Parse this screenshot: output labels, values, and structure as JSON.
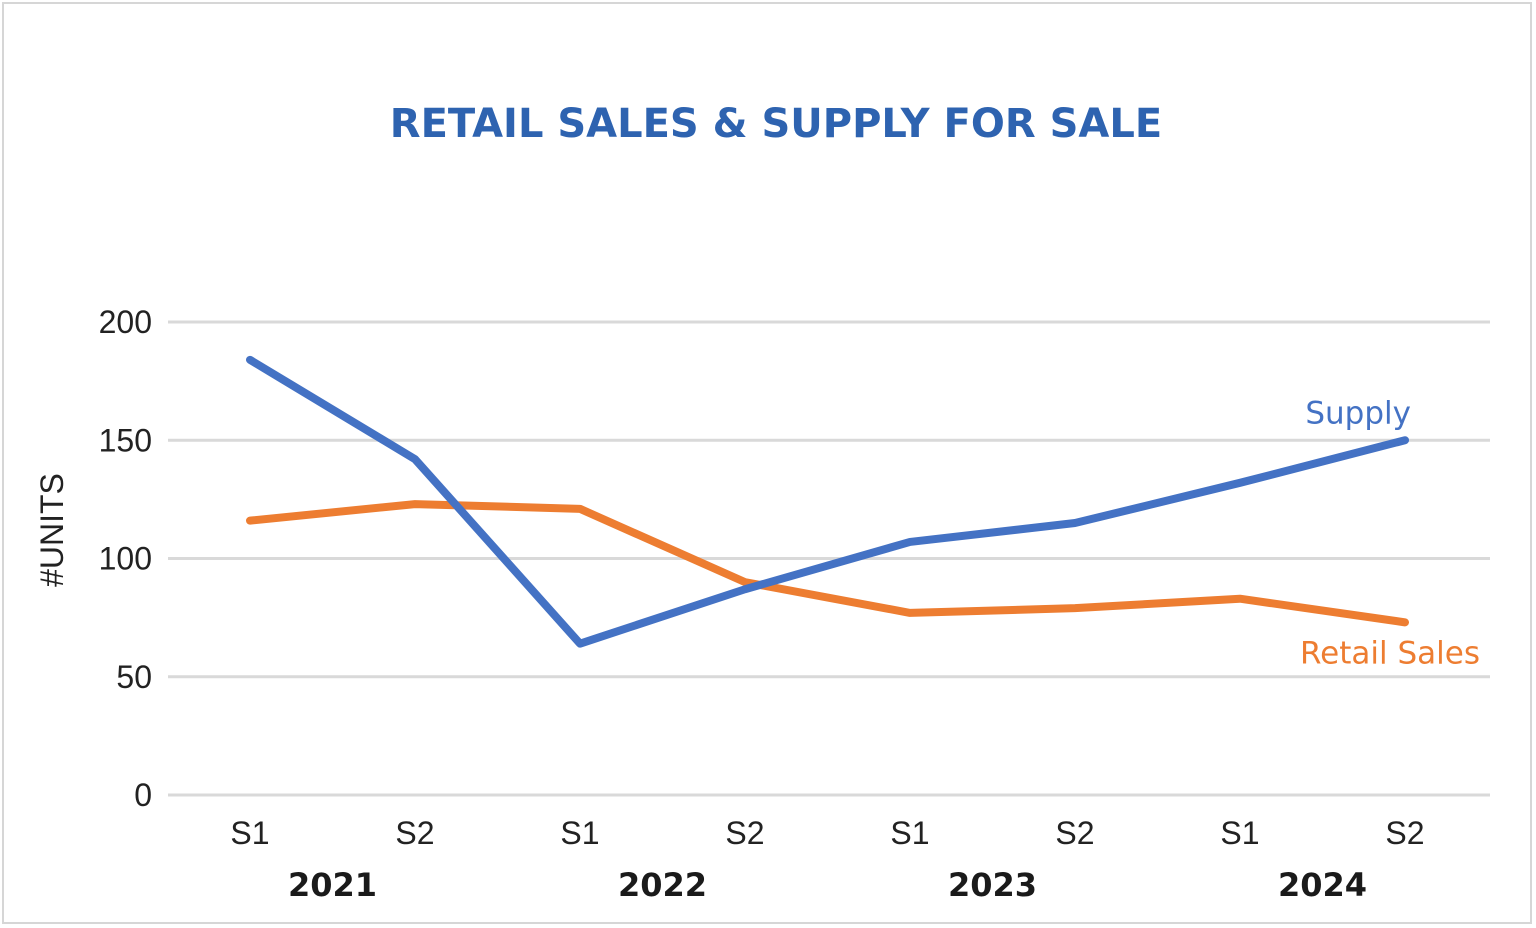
{
  "chart_data": {
    "type": "line",
    "title": "RETAIL SALES & SUPPLY FOR SALE",
    "ylabel": "#UNITS",
    "xlabel": "",
    "ylim": [
      0,
      200
    ],
    "yticks": [
      "0",
      "50",
      "100",
      "150",
      "200"
    ],
    "categories": [
      "S1",
      "S2",
      "S1",
      "S2",
      "S1",
      "S2",
      "S1",
      "S2"
    ],
    "groups": [
      {
        "label": "2021",
        "span": [
          0,
          1
        ]
      },
      {
        "label": "2022",
        "span": [
          2,
          3
        ]
      },
      {
        "label": "2023",
        "span": [
          4,
          5
        ]
      },
      {
        "label": "2024",
        "span": [
          6,
          7
        ]
      }
    ],
    "grid": true,
    "series": [
      {
        "name": "Supply",
        "color": "#4472c4",
        "values": [
          184,
          142,
          64,
          87,
          107,
          115,
          132,
          150
        ]
      },
      {
        "name": "Retail Sales",
        "color": "#ed7d31",
        "values": [
          116,
          123,
          121,
          90,
          77,
          79,
          83,
          73
        ]
      }
    ]
  }
}
